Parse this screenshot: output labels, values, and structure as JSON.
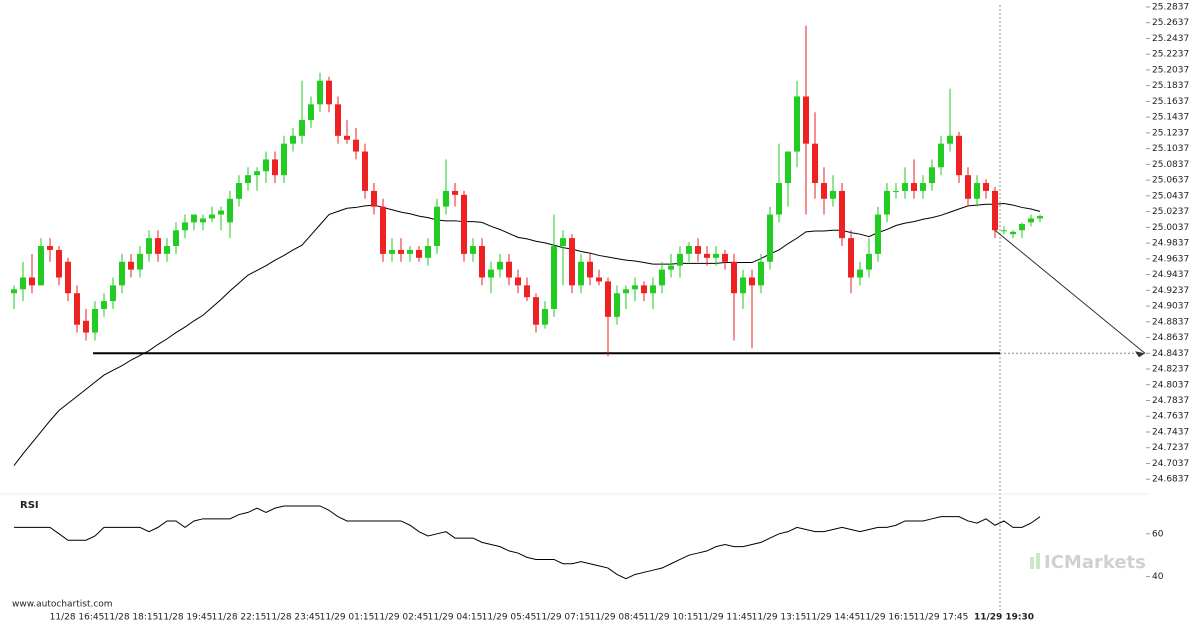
{
  "chart_data": {
    "type": "candlestick",
    "up_color": "#22cc22",
    "down_color": "#ee2222",
    "ylim": [
      24.67,
      25.29
    ],
    "yticks": [
      25.2837,
      25.2637,
      25.2437,
      25.2237,
      25.2037,
      25.1837,
      25.1637,
      25.1437,
      25.1237,
      25.1037,
      25.0837,
      25.0637,
      25.0437,
      25.0237,
      25.0037,
      24.9837,
      24.9637,
      24.9437,
      24.9237,
      24.9037,
      24.8837,
      24.8637,
      24.8437,
      24.8237,
      24.8037,
      24.7837,
      24.7637,
      24.7437,
      24.7237,
      24.7037,
      24.6837
    ],
    "support_level": 24.8437,
    "categories": [
      null,
      null,
      null,
      null,
      null,
      null,
      null,
      "11/28 16:45",
      null,
      null,
      null,
      null,
      null,
      "11/28 18:15",
      null,
      null,
      null,
      null,
      null,
      "11/28 19:45",
      null,
      null,
      null,
      null,
      null,
      "11/28 22:15",
      null,
      null,
      null,
      null,
      null,
      "11/28 23:45",
      null,
      null,
      null,
      null,
      null,
      "11/29 01:15",
      null,
      null,
      null,
      null,
      null,
      "11/29 02:45",
      null,
      null,
      null,
      null,
      null,
      "11/29 04:15",
      null,
      null,
      null,
      null,
      null,
      "11/29 05:45",
      null,
      null,
      null,
      null,
      null,
      "11/29 07:15",
      null,
      null,
      null,
      null,
      null,
      "11/29 08:45",
      null,
      null,
      null,
      null,
      null,
      "11/29 10:15",
      null,
      null,
      null,
      null,
      null,
      "11/29 11:45",
      null,
      null,
      null,
      null,
      null,
      "11/29 13:15",
      null,
      null,
      null,
      null,
      null,
      "11/29 14:45",
      null,
      null,
      null,
      null,
      null,
      "11/29 16:15",
      null,
      null,
      null,
      null,
      null,
      "11/29 17:45",
      null,
      null,
      null,
      null,
      null,
      null,
      "11/29 19:30",
      null,
      null,
      null,
      null
    ],
    "candles": [
      [
        24.92,
        24.93,
        24.9,
        24.925
      ],
      [
        24.925,
        24.96,
        24.91,
        24.94
      ],
      [
        24.94,
        24.97,
        24.92,
        24.93
      ],
      [
        24.93,
        24.99,
        24.93,
        24.98
      ],
      [
        24.98,
        24.99,
        24.96,
        24.975
      ],
      [
        24.975,
        24.98,
        24.93,
        24.94
      ],
      [
        24.96,
        24.965,
        24.91,
        24.92
      ],
      [
        24.92,
        24.93,
        24.87,
        24.88
      ],
      [
        24.885,
        24.9,
        24.86,
        24.87
      ],
      [
        24.87,
        24.91,
        24.86,
        24.9
      ],
      [
        24.9,
        24.92,
        24.89,
        24.91
      ],
      [
        24.91,
        24.94,
        24.9,
        24.93
      ],
      [
        24.93,
        24.97,
        24.92,
        24.96
      ],
      [
        24.96,
        24.97,
        24.94,
        24.95
      ],
      [
        24.95,
        24.98,
        24.94,
        24.97
      ],
      [
        24.97,
        25.0,
        24.96,
        24.99
      ],
      [
        24.99,
        25.0,
        24.96,
        24.97
      ],
      [
        24.97,
        24.99,
        24.96,
        24.98
      ],
      [
        24.98,
        25.01,
        24.97,
        25.0
      ],
      [
        25.0,
        25.02,
        24.99,
        25.01
      ],
      [
        25.01,
        25.02,
        25.0,
        25.02
      ],
      [
        25.01,
        25.02,
        25.0,
        25.015
      ],
      [
        25.015,
        25.03,
        25.01,
        25.02
      ],
      [
        25.02,
        25.03,
        25.0,
        25.025
      ],
      [
        25.01,
        25.05,
        24.99,
        25.04
      ],
      [
        25.04,
        25.07,
        25.03,
        25.06
      ],
      [
        25.06,
        25.08,
        25.05,
        25.07
      ],
      [
        25.07,
        25.08,
        25.05,
        25.075
      ],
      [
        25.075,
        25.1,
        25.06,
        25.09
      ],
      [
        25.09,
        25.1,
        25.06,
        25.07
      ],
      [
        25.07,
        25.12,
        25.06,
        25.11
      ],
      [
        25.11,
        25.13,
        25.1,
        25.12
      ],
      [
        25.12,
        25.19,
        25.11,
        25.14
      ],
      [
        25.14,
        25.17,
        25.13,
        25.16
      ],
      [
        25.16,
        25.2,
        25.15,
        25.19
      ],
      [
        25.19,
        25.195,
        25.15,
        25.16
      ],
      [
        25.16,
        25.17,
        25.11,
        25.12
      ],
      [
        25.12,
        25.14,
        25.11,
        25.115
      ],
      [
        25.115,
        25.13,
        25.09,
        25.1
      ],
      [
        25.1,
        25.11,
        25.04,
        25.05
      ],
      [
        25.05,
        25.06,
        25.02,
        25.03
      ],
      [
        25.03,
        25.04,
        24.96,
        24.97
      ],
      [
        24.97,
        24.99,
        24.96,
        24.975
      ],
      [
        24.975,
        24.99,
        24.96,
        24.97
      ],
      [
        24.97,
        24.98,
        24.96,
        24.975
      ],
      [
        24.975,
        24.98,
        24.96,
        24.965
      ],
      [
        24.965,
        24.99,
        24.955,
        24.98
      ],
      [
        24.98,
        25.04,
        24.97,
        25.03
      ],
      [
        25.03,
        25.09,
        25.02,
        25.05
      ],
      [
        25.05,
        25.06,
        25.03,
        25.045
      ],
      [
        25.045,
        25.05,
        24.96,
        24.97
      ],
      [
        24.97,
        24.99,
        24.96,
        24.98
      ],
      [
        24.98,
        24.99,
        24.93,
        24.94
      ],
      [
        24.94,
        24.96,
        24.92,
        24.95
      ],
      [
        24.95,
        24.97,
        24.94,
        24.96
      ],
      [
        24.96,
        24.97,
        24.93,
        24.94
      ],
      [
        24.94,
        24.95,
        24.92,
        24.93
      ],
      [
        24.93,
        24.94,
        24.91,
        24.915
      ],
      [
        24.915,
        24.92,
        24.87,
        24.88
      ],
      [
        24.88,
        24.91,
        24.875,
        24.9
      ],
      [
        24.9,
        25.02,
        24.89,
        24.98
      ],
      [
        24.98,
        25.0,
        24.93,
        24.99
      ],
      [
        24.99,
        24.995,
        24.92,
        24.93
      ],
      [
        24.93,
        24.97,
        24.92,
        24.96
      ],
      [
        24.96,
        24.97,
        24.93,
        24.94
      ],
      [
        24.94,
        24.95,
        24.93,
        24.935
      ],
      [
        24.935,
        24.94,
        24.84,
        24.89
      ],
      [
        24.89,
        24.93,
        24.88,
        24.92
      ],
      [
        24.92,
        24.93,
        24.9,
        24.925
      ],
      [
        24.925,
        24.94,
        24.91,
        24.93
      ],
      [
        24.93,
        24.935,
        24.91,
        24.92
      ],
      [
        24.92,
        24.94,
        24.9,
        24.93
      ],
      [
        24.93,
        24.96,
        24.92,
        24.95
      ],
      [
        24.95,
        24.97,
        24.94,
        24.955
      ],
      [
        24.955,
        24.98,
        24.94,
        24.97
      ],
      [
        24.97,
        24.985,
        24.96,
        24.98
      ],
      [
        24.98,
        24.99,
        24.96,
        24.97
      ],
      [
        24.97,
        24.98,
        24.955,
        24.965
      ],
      [
        24.965,
        24.98,
        24.955,
        24.97
      ],
      [
        24.97,
        24.975,
        24.95,
        24.96
      ],
      [
        24.96,
        24.97,
        24.86,
        24.92
      ],
      [
        24.92,
        24.95,
        24.9,
        24.94
      ],
      [
        24.94,
        24.95,
        24.85,
        24.93
      ],
      [
        24.93,
        24.97,
        24.92,
        24.96
      ],
      [
        24.96,
        25.03,
        24.95,
        25.02
      ],
      [
        25.02,
        25.11,
        25.01,
        25.06
      ],
      [
        25.06,
        25.1,
        25.03,
        25.1
      ],
      [
        25.1,
        25.19,
        25.08,
        25.17
      ],
      [
        25.17,
        25.26,
        25.02,
        25.11
      ],
      [
        25.11,
        25.15,
        25.04,
        25.06
      ],
      [
        25.06,
        25.08,
        25.02,
        25.04
      ],
      [
        25.04,
        25.07,
        25.03,
        25.05
      ],
      [
        25.05,
        25.06,
        24.98,
        24.99
      ],
      [
        24.99,
        25.0,
        24.92,
        24.94
      ],
      [
        24.94,
        24.96,
        24.93,
        24.95
      ],
      [
        24.95,
        24.99,
        24.94,
        24.97
      ],
      [
        24.97,
        25.03,
        24.96,
        25.02
      ],
      [
        25.02,
        25.06,
        25.01,
        25.05
      ],
      [
        25.05,
        25.06,
        25.04,
        25.05
      ],
      [
        25.05,
        25.08,
        25.04,
        25.06
      ],
      [
        25.06,
        25.09,
        25.04,
        25.05
      ],
      [
        25.05,
        25.07,
        25.04,
        25.06
      ],
      [
        25.06,
        25.09,
        25.05,
        25.08
      ],
      [
        25.08,
        25.12,
        25.07,
        25.11
      ],
      [
        25.11,
        25.18,
        25.1,
        25.12
      ],
      [
        25.12,
        25.125,
        25.06,
        25.07
      ],
      [
        25.07,
        25.08,
        25.03,
        25.04
      ],
      [
        25.04,
        25.07,
        25.03,
        25.06
      ],
      [
        25.06,
        25.065,
        25.04,
        25.05
      ],
      [
        25.05,
        25.055,
        24.99,
        25.0
      ],
      [
        25.0,
        25.005,
        24.995,
        25.0
      ],
      [
        24.995,
        25.0,
        24.99,
        24.998
      ],
      [
        25.0,
        25.01,
        24.99,
        25.008
      ],
      [
        25.01,
        25.02,
        25.005,
        25.015
      ],
      [
        25.015,
        25.02,
        25.01,
        25.018
      ]
    ],
    "ma": [
      24.701,
      24.716,
      24.73,
      24.744,
      24.758,
      24.771,
      24.78,
      24.789,
      24.798,
      24.807,
      24.816,
      24.822,
      24.828,
      24.835,
      24.841,
      24.847,
      24.855,
      24.862,
      24.87,
      24.877,
      24.885,
      24.892,
      24.902,
      24.912,
      24.923,
      24.933,
      24.943,
      24.949,
      24.955,
      24.962,
      24.968,
      24.975,
      24.981,
      24.994,
      25.007,
      25.02,
      25.024,
      25.028,
      25.029,
      25.031,
      25.032,
      25.029,
      25.026,
      25.023,
      25.021,
      25.018,
      25.016,
      25.013,
      25.012,
      25.012,
      25.011,
      25.011,
      25.01,
      25.005,
      25.001,
      24.996,
      24.991,
      24.989,
      24.986,
      24.984,
      24.981,
      24.978,
      24.976,
      24.973,
      24.971,
      24.968,
      24.966,
      24.964,
      24.962,
      24.961,
      24.959,
      24.957,
      24.957,
      24.957,
      24.958,
      24.958,
      24.958,
      24.958,
      24.958,
      24.959,
      24.959,
      24.959,
      24.959,
      24.964,
      24.97,
      24.975,
      24.983,
      24.99,
      24.998,
      24.999,
      24.999,
      25.0,
      25.0,
      24.997,
      24.995,
      24.992,
      24.997,
      25.001,
      25.006,
      25.009,
      25.011,
      25.014,
      25.016,
      25.019,
      25.023,
      25.027,
      25.031,
      25.032,
      25.033,
      25.033,
      25.034,
      25.032,
      25.029,
      25.027,
      25.024
    ],
    "rsi_label": "RSI",
    "rsi_ylim": [
      30,
      80
    ],
    "rsi_yticks": [
      40,
      60
    ],
    "rsi": [
      63,
      63,
      63,
      63,
      63,
      60,
      57,
      57,
      57,
      59,
      63,
      63,
      63,
      63,
      63,
      61,
      63,
      66,
      66,
      63,
      66,
      67,
      67,
      67,
      67,
      69,
      70,
      72,
      70,
      72,
      73,
      73,
      73,
      73,
      73,
      71,
      68,
      66,
      66,
      66,
      66,
      66,
      66,
      66,
      64,
      61,
      59,
      60,
      61,
      58,
      58,
      58,
      56,
      55,
      54,
      52,
      51,
      49,
      48,
      48,
      48,
      46,
      46,
      47,
      46,
      45,
      44,
      41,
      39,
      41,
      42,
      43,
      44,
      46,
      48,
      50,
      51,
      52,
      54,
      55,
      54,
      54,
      55,
      56,
      58,
      60,
      61,
      63,
      62,
      61,
      61,
      62,
      63,
      62,
      61,
      62,
      63,
      63,
      64,
      66,
      66,
      66,
      67,
      68,
      68,
      68,
      66,
      65,
      67,
      64,
      66,
      63,
      63,
      65,
      68
    ],
    "watermark": "www.autochartist.com",
    "brand": "ICMarkets"
  }
}
